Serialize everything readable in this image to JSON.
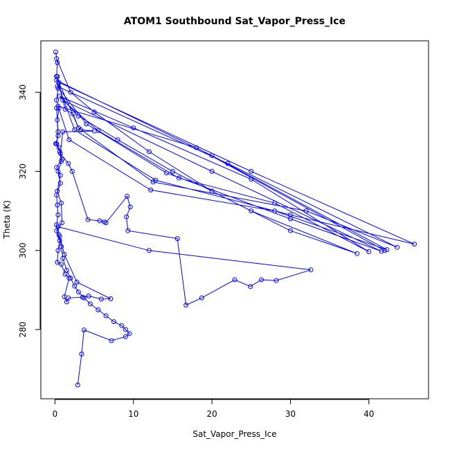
{
  "chart_data": {
    "type": "line",
    "title": "ATOM1 Southbound Sat_Vapor_Press_Ice",
    "xlabel": "Sat_Vapor_Press_Ice",
    "ylabel": "Theta (K)",
    "xlim": [
      -1.8,
      47.6
    ],
    "ylim": [
      262.5,
      353.0
    ],
    "x_ticks": [
      0,
      10,
      20,
      30,
      40
    ],
    "y_ticks": [
      280,
      300,
      320,
      340
    ],
    "grid": false,
    "series": [
      {
        "color": "#0000ff",
        "marker": "open-circle",
        "line": true,
        "points": [
          [
            0.1,
            350.2
          ],
          [
            0.3,
            347.5
          ],
          [
            0.2,
            344.0
          ],
          [
            0.4,
            341.0
          ],
          [
            0.2,
            338.0
          ],
          [
            0.5,
            336.0
          ],
          [
            0.3,
            333.0
          ],
          [
            0.4,
            330.0
          ],
          [
            0.2,
            327.0
          ],
          [
            0.6,
            325.0
          ],
          [
            0.8,
            322.5
          ],
          [
            0.4,
            320.0
          ],
          [
            0.7,
            317.0
          ],
          [
            0.2,
            314.0
          ],
          [
            0.3,
            311.5
          ],
          [
            0.4,
            309.0
          ],
          [
            0.2,
            306.5
          ],
          [
            0.5,
            304.0
          ],
          [
            0.8,
            301.0
          ],
          [
            1.0,
            298.0
          ],
          [
            1.5,
            295.0
          ],
          [
            2.0,
            293.0
          ],
          [
            2.5,
            291.0
          ],
          [
            3.0,
            289.5
          ],
          [
            3.7,
            288.0
          ],
          [
            4.5,
            286.5
          ],
          [
            5.5,
            285.0
          ],
          [
            6.5,
            283.5
          ],
          [
            7.5,
            282.0
          ],
          [
            8.5,
            281.0
          ],
          [
            9.0,
            280.0
          ],
          [
            9.5,
            279.0
          ],
          [
            9.0,
            278.2
          ],
          [
            7.2,
            277.2
          ],
          [
            3.7,
            279.9
          ],
          [
            3.4,
            273.8
          ],
          [
            2.9,
            266.0
          ]
        ]
      },
      {
        "color": "#0000ff",
        "marker": "open-circle",
        "line": true,
        "points": [
          [
            0.2,
            348.5
          ],
          [
            2.0,
            340.0
          ],
          [
            5.0,
            335.0
          ],
          [
            12.0,
            325.0
          ],
          [
            20.0,
            315.0
          ],
          [
            30.0,
            305.0
          ],
          [
            38.5,
            299.2
          ],
          [
            25.0,
            310.0
          ],
          [
            15.0,
            320.0
          ],
          [
            8.0,
            328.0
          ],
          [
            3.0,
            334.0
          ],
          [
            0.6,
            339.0
          ],
          [
            10.0,
            331.0
          ],
          [
            25.0,
            318.0
          ],
          [
            40.0,
            299.7
          ],
          [
            28.0,
            312.0
          ],
          [
            15.8,
            318.3
          ],
          [
            5.5,
            330.3
          ],
          [
            1.0,
            338.0
          ],
          [
            20.0,
            320.0
          ],
          [
            41.6,
            299.8
          ],
          [
            30.0,
            308.0
          ],
          [
            14.2,
            319.6
          ],
          [
            4.0,
            332.0
          ],
          [
            0.3,
            341.5
          ],
          [
            22.0,
            322.0
          ],
          [
            43.6,
            300.8
          ],
          [
            32.0,
            310.0
          ],
          [
            12.5,
            317.3
          ],
          [
            3.0,
            331.0
          ],
          [
            0.5,
            342.5
          ],
          [
            25.0,
            320.0
          ],
          [
            45.8,
            301.6
          ],
          [
            30.0,
            309.0
          ],
          [
            12.8,
            317.8
          ],
          [
            2.5,
            330.5
          ],
          [
            0.2,
            343.0
          ],
          [
            20.0,
            324.0
          ],
          [
            42.3,
            300.2
          ],
          [
            28.0,
            310.0
          ],
          [
            12.2,
            315.3
          ],
          [
            1.8,
            328.0
          ],
          [
            0.4,
            336.5
          ],
          [
            18.0,
            326.0
          ],
          [
            42.0,
            300.0
          ]
        ]
      },
      {
        "color": "#0000ff",
        "marker": "open-circle",
        "line": true,
        "points": [
          [
            0.3,
            344.0
          ],
          [
            1.3,
            335.7
          ],
          [
            2.3,
            334.5
          ],
          [
            3.0,
            331.0
          ],
          [
            3.3,
            330.5
          ],
          [
            5.0,
            330.2
          ],
          [
            1.0,
            330.0
          ],
          [
            0.7,
            324.5
          ],
          [
            1.7,
            322.0
          ],
          [
            2.2,
            320.0
          ],
          [
            4.2,
            307.8
          ],
          [
            5.7,
            307.5
          ],
          [
            6.3,
            307.2
          ],
          [
            6.5,
            307.0
          ],
          [
            9.2,
            313.7
          ],
          [
            9.6,
            311.0
          ],
          [
            9.1,
            308.5
          ],
          [
            9.3,
            305.0
          ],
          [
            15.6,
            303.0
          ],
          [
            16.7,
            286.2
          ],
          [
            18.7,
            288.0
          ],
          [
            22.9,
            292.6
          ],
          [
            24.9,
            290.9
          ],
          [
            26.3,
            292.6
          ],
          [
            28.2,
            292.4
          ],
          [
            32.6,
            295.1
          ],
          [
            12.0,
            300.0
          ],
          [
            0.4,
            306.0
          ]
        ]
      },
      {
        "color": "#0000ff",
        "marker": "open-circle",
        "line": true,
        "points": [
          [
            0.2,
            336.0
          ],
          [
            0.4,
            329.0
          ],
          [
            0.1,
            327.0
          ],
          [
            0.5,
            326.0
          ],
          [
            0.9,
            323.0
          ],
          [
            0.2,
            321.0
          ],
          [
            0.7,
            319.0
          ],
          [
            0.3,
            315.0
          ],
          [
            0.8,
            312.0
          ],
          [
            0.9,
            307.0
          ],
          [
            0.2,
            305.0
          ],
          [
            0.6,
            302.5
          ],
          [
            0.4,
            300.0
          ],
          [
            0.3,
            297.0
          ],
          [
            0.8,
            296.5
          ],
          [
            1.3,
            294.0
          ],
          [
            1.8,
            293.0
          ],
          [
            1.2,
            288.3
          ],
          [
            1.5,
            287.0
          ],
          [
            1.7,
            288.0
          ],
          [
            3.5,
            288.2
          ],
          [
            4.3,
            288.5
          ],
          [
            5.9,
            287.7
          ],
          [
            7.1,
            287.8
          ],
          [
            2.8,
            292.0
          ],
          [
            1.2,
            299.0
          ],
          [
            0.6,
            303.5
          ]
        ]
      }
    ]
  }
}
